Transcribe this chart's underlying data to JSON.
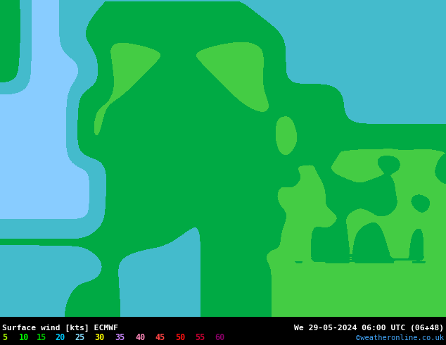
{
  "title_left": "Surface wind [kts] ECMWF",
  "title_right": "We 29-05-2024 06:00 UTC (06+48)",
  "credit": "©weatheronline.co.uk",
  "legend_values": [
    "5",
    "10",
    "15",
    "20",
    "25",
    "30",
    "35",
    "40",
    "45",
    "50",
    "55",
    "60"
  ],
  "legend_colors": [
    "#aaff00",
    "#00ff00",
    "#00cc00",
    "#00ccff",
    "#88ddff",
    "#ffff00",
    "#cc88ff",
    "#ff88bb",
    "#ff4444",
    "#ff1111",
    "#cc0033",
    "#880066"
  ],
  "wind_bounds": [
    0,
    5,
    10,
    15,
    20,
    25,
    30,
    35,
    40,
    45,
    50,
    55,
    60,
    100
  ],
  "wind_colors": [
    "#aaff44",
    "#88ee44",
    "#44cc44",
    "#00aa44",
    "#44bbcc",
    "#88ccff",
    "#eeff44",
    "#ccdd00",
    "#ffaa00",
    "#ff6600",
    "#ff2200",
    "#cc0044",
    "#880055"
  ],
  "bg_color": "#000000",
  "footer_bg": "#000000",
  "fig_width": 6.34,
  "fig_height": 4.9,
  "dpi": 100,
  "lon_min": 0.0,
  "lon_max": 35.0,
  "lat_min": 54.0,
  "lat_max": 72.0
}
